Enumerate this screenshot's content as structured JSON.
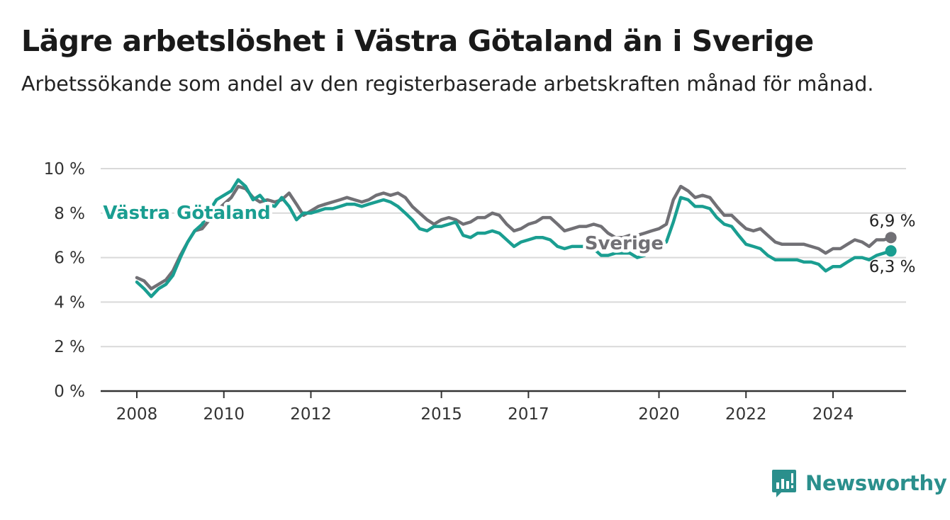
{
  "header": {
    "title": "Lägre arbetslöshet i Västra Götaland än i Sverige",
    "subtitle": "Arbetssökande som andel av den registerbaserade arbetskraften månad för månad."
  },
  "brand": {
    "name": "Newsworthy",
    "icon": "newsworthy-logo-icon",
    "color": "#2a8f8c"
  },
  "chart_data": {
    "type": "line",
    "title": "Lägre arbetslöshet i Västra Götaland än i Sverige",
    "subtitle": "Arbetssökande som andel av den registerbaserade arbetskraften månad för månad.",
    "xlabel": "",
    "ylabel": "",
    "xlim": [
      2008,
      2025.4
    ],
    "ylim": [
      0,
      10
    ],
    "grid": true,
    "legend": "inline labels on lines",
    "x_ticks": [
      {
        "value": 2008,
        "label": "2008"
      },
      {
        "value": 2010,
        "label": "2010"
      },
      {
        "value": 2012,
        "label": "2012"
      },
      {
        "value": 2015,
        "label": "2015"
      },
      {
        "value": 2017,
        "label": "2017"
      },
      {
        "value": 2020,
        "label": "2020"
      },
      {
        "value": 2022,
        "label": "2022"
      },
      {
        "value": 2024,
        "label": "2024"
      }
    ],
    "y_ticks": [
      {
        "value": 0,
        "label": "0 %"
      },
      {
        "value": 2,
        "label": "2 %"
      },
      {
        "value": 4,
        "label": "4 %"
      },
      {
        "value": 6,
        "label": "6 %"
      },
      {
        "value": 8,
        "label": "8 %"
      },
      {
        "value": 10,
        "label": "10 %"
      }
    ],
    "series": [
      {
        "name": "Sverige",
        "color": "#717075",
        "end_label": "6,9 %",
        "points": [
          [
            2008.0,
            5.1
          ],
          [
            2008.17,
            4.95
          ],
          [
            2008.33,
            4.6
          ],
          [
            2008.5,
            4.8
          ],
          [
            2008.67,
            5.0
          ],
          [
            2008.83,
            5.4
          ],
          [
            2009.0,
            6.1
          ],
          [
            2009.17,
            6.7
          ],
          [
            2009.33,
            7.2
          ],
          [
            2009.5,
            7.3
          ],
          [
            2009.67,
            7.7
          ],
          [
            2009.83,
            8.1
          ],
          [
            2010.0,
            8.4
          ],
          [
            2010.17,
            8.7
          ],
          [
            2010.33,
            9.2
          ],
          [
            2010.5,
            9.1
          ],
          [
            2010.67,
            8.7
          ],
          [
            2010.83,
            8.5
          ],
          [
            2011.0,
            8.6
          ],
          [
            2011.17,
            8.5
          ],
          [
            2011.33,
            8.6
          ],
          [
            2011.5,
            8.9
          ],
          [
            2011.67,
            8.4
          ],
          [
            2011.83,
            7.9
          ],
          [
            2012.0,
            8.1
          ],
          [
            2012.17,
            8.3
          ],
          [
            2012.33,
            8.4
          ],
          [
            2012.5,
            8.5
          ],
          [
            2012.67,
            8.6
          ],
          [
            2012.83,
            8.7
          ],
          [
            2013.0,
            8.6
          ],
          [
            2013.17,
            8.5
          ],
          [
            2013.33,
            8.6
          ],
          [
            2013.5,
            8.8
          ],
          [
            2013.67,
            8.9
          ],
          [
            2013.83,
            8.8
          ],
          [
            2014.0,
            8.9
          ],
          [
            2014.17,
            8.7
          ],
          [
            2014.33,
            8.3
          ],
          [
            2014.5,
            8.0
          ],
          [
            2014.67,
            7.7
          ],
          [
            2014.83,
            7.5
          ],
          [
            2015.0,
            7.7
          ],
          [
            2015.17,
            7.8
          ],
          [
            2015.33,
            7.7
          ],
          [
            2015.5,
            7.5
          ],
          [
            2015.67,
            7.6
          ],
          [
            2015.83,
            7.8
          ],
          [
            2016.0,
            7.8
          ],
          [
            2016.17,
            8.0
          ],
          [
            2016.33,
            7.9
          ],
          [
            2016.5,
            7.5
          ],
          [
            2016.67,
            7.2
          ],
          [
            2016.83,
            7.3
          ],
          [
            2017.0,
            7.5
          ],
          [
            2017.17,
            7.6
          ],
          [
            2017.33,
            7.8
          ],
          [
            2017.5,
            7.8
          ],
          [
            2017.67,
            7.5
          ],
          [
            2017.83,
            7.2
          ],
          [
            2018.0,
            7.3
          ],
          [
            2018.17,
            7.4
          ],
          [
            2018.33,
            7.4
          ],
          [
            2018.5,
            7.5
          ],
          [
            2018.67,
            7.4
          ],
          [
            2018.83,
            7.1
          ],
          [
            2019.0,
            6.9
          ],
          [
            2019.17,
            6.9
          ],
          [
            2019.33,
            7.0
          ],
          [
            2019.5,
            7.0
          ],
          [
            2019.67,
            7.1
          ],
          [
            2019.83,
            7.2
          ],
          [
            2020.0,
            7.3
          ],
          [
            2020.17,
            7.5
          ],
          [
            2020.33,
            8.6
          ],
          [
            2020.5,
            9.2
          ],
          [
            2020.67,
            9.0
          ],
          [
            2020.83,
            8.7
          ],
          [
            2021.0,
            8.8
          ],
          [
            2021.17,
            8.7
          ],
          [
            2021.33,
            8.3
          ],
          [
            2021.5,
            7.9
          ],
          [
            2021.67,
            7.9
          ],
          [
            2021.83,
            7.6
          ],
          [
            2022.0,
            7.3
          ],
          [
            2022.17,
            7.2
          ],
          [
            2022.33,
            7.3
          ],
          [
            2022.5,
            7.0
          ],
          [
            2022.67,
            6.7
          ],
          [
            2022.83,
            6.6
          ],
          [
            2023.0,
            6.6
          ],
          [
            2023.17,
            6.6
          ],
          [
            2023.33,
            6.6
          ],
          [
            2023.5,
            6.5
          ],
          [
            2023.67,
            6.4
          ],
          [
            2023.83,
            6.2
          ],
          [
            2024.0,
            6.4
          ],
          [
            2024.17,
            6.4
          ],
          [
            2024.33,
            6.6
          ],
          [
            2024.5,
            6.8
          ],
          [
            2024.67,
            6.7
          ],
          [
            2024.83,
            6.5
          ],
          [
            2025.0,
            6.8
          ],
          [
            2025.17,
            6.8
          ],
          [
            2025.33,
            6.9
          ]
        ]
      },
      {
        "name": "Västra Götaland",
        "color": "#1a9e91",
        "end_label": "6,3 %",
        "points": [
          [
            2008.0,
            4.9
          ],
          [
            2008.17,
            4.6
          ],
          [
            2008.33,
            4.25
          ],
          [
            2008.5,
            4.6
          ],
          [
            2008.67,
            4.8
          ],
          [
            2008.83,
            5.2
          ],
          [
            2009.0,
            6.0
          ],
          [
            2009.17,
            6.7
          ],
          [
            2009.33,
            7.2
          ],
          [
            2009.5,
            7.5
          ],
          [
            2009.67,
            8.1
          ],
          [
            2009.83,
            8.6
          ],
          [
            2010.0,
            8.8
          ],
          [
            2010.17,
            9.0
          ],
          [
            2010.33,
            9.5
          ],
          [
            2010.5,
            9.2
          ],
          [
            2010.67,
            8.6
          ],
          [
            2010.83,
            8.8
          ],
          [
            2011.0,
            8.4
          ],
          [
            2011.17,
            8.3
          ],
          [
            2011.33,
            8.7
          ],
          [
            2011.5,
            8.3
          ],
          [
            2011.67,
            7.7
          ],
          [
            2011.83,
            8.0
          ],
          [
            2012.0,
            8.0
          ],
          [
            2012.17,
            8.1
          ],
          [
            2012.33,
            8.2
          ],
          [
            2012.5,
            8.2
          ],
          [
            2012.67,
            8.3
          ],
          [
            2012.83,
            8.4
          ],
          [
            2013.0,
            8.4
          ],
          [
            2013.17,
            8.3
          ],
          [
            2013.33,
            8.4
          ],
          [
            2013.5,
            8.5
          ],
          [
            2013.67,
            8.6
          ],
          [
            2013.83,
            8.5
          ],
          [
            2014.0,
            8.3
          ],
          [
            2014.17,
            8.0
          ],
          [
            2014.33,
            7.7
          ],
          [
            2014.5,
            7.3
          ],
          [
            2014.67,
            7.2
          ],
          [
            2014.83,
            7.4
          ],
          [
            2015.0,
            7.4
          ],
          [
            2015.17,
            7.5
          ],
          [
            2015.33,
            7.6
          ],
          [
            2015.5,
            7.0
          ],
          [
            2015.67,
            6.9
          ],
          [
            2015.83,
            7.1
          ],
          [
            2016.0,
            7.1
          ],
          [
            2016.17,
            7.2
          ],
          [
            2016.33,
            7.1
          ],
          [
            2016.5,
            6.8
          ],
          [
            2016.67,
            6.5
          ],
          [
            2016.83,
            6.7
          ],
          [
            2017.0,
            6.8
          ],
          [
            2017.17,
            6.9
          ],
          [
            2017.33,
            6.9
          ],
          [
            2017.5,
            6.8
          ],
          [
            2017.67,
            6.5
          ],
          [
            2017.83,
            6.4
          ],
          [
            2018.0,
            6.5
          ],
          [
            2018.17,
            6.5
          ],
          [
            2018.33,
            6.5
          ],
          [
            2018.5,
            6.4
          ],
          [
            2018.67,
            6.1
          ],
          [
            2018.83,
            6.1
          ],
          [
            2019.0,
            6.2
          ],
          [
            2019.17,
            6.2
          ],
          [
            2019.33,
            6.2
          ],
          [
            2019.5,
            6.0
          ],
          [
            2019.67,
            6.1
          ],
          [
            2019.83,
            6.4
          ],
          [
            2020.0,
            6.6
          ],
          [
            2020.17,
            6.7
          ],
          [
            2020.33,
            7.6
          ],
          [
            2020.5,
            8.7
          ],
          [
            2020.67,
            8.6
          ],
          [
            2020.83,
            8.3
          ],
          [
            2021.0,
            8.3
          ],
          [
            2021.17,
            8.2
          ],
          [
            2021.33,
            7.8
          ],
          [
            2021.5,
            7.5
          ],
          [
            2021.67,
            7.4
          ],
          [
            2021.83,
            7.0
          ],
          [
            2022.0,
            6.6
          ],
          [
            2022.17,
            6.5
          ],
          [
            2022.33,
            6.4
          ],
          [
            2022.5,
            6.1
          ],
          [
            2022.67,
            5.9
          ],
          [
            2022.83,
            5.9
          ],
          [
            2023.0,
            5.9
          ],
          [
            2023.17,
            5.9
          ],
          [
            2023.33,
            5.8
          ],
          [
            2023.5,
            5.8
          ],
          [
            2023.67,
            5.7
          ],
          [
            2023.83,
            5.4
          ],
          [
            2024.0,
            5.6
          ],
          [
            2024.17,
            5.6
          ],
          [
            2024.33,
            5.8
          ],
          [
            2024.5,
            6.0
          ],
          [
            2024.67,
            6.0
          ],
          [
            2024.83,
            5.9
          ],
          [
            2025.0,
            6.1
          ],
          [
            2025.17,
            6.2
          ],
          [
            2025.33,
            6.3
          ]
        ]
      }
    ]
  }
}
